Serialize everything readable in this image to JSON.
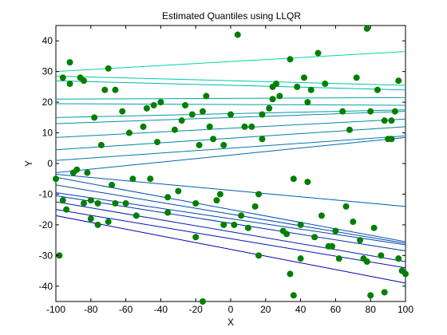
{
  "chart_data": {
    "type": "scatter",
    "title": "Estimated Quantiles using LLQR",
    "xlabel": "X",
    "ylabel": "Y",
    "xlim": [
      -100,
      100
    ],
    "ylim": [
      -45,
      45
    ],
    "xticks": [
      -100,
      -80,
      -60,
      -40,
      -20,
      0,
      20,
      40,
      60,
      80,
      100
    ],
    "yticks": [
      -40,
      -30,
      -20,
      -10,
      0,
      10,
      20,
      30,
      40
    ],
    "grid": false,
    "points": {
      "color": "#007f00",
      "x": [
        -100,
        -96,
        -94,
        -92,
        -90,
        -86,
        -84,
        -82,
        -80,
        -78,
        -76,
        -72,
        -70,
        -68,
        -66,
        -62,
        -58,
        -54,
        -50,
        -46,
        -44,
        -40,
        -36,
        -32,
        -30,
        -26,
        -22,
        -20,
        -18,
        -16,
        -14,
        -12,
        -10,
        -6,
        -4,
        0,
        4,
        6,
        10,
        12,
        16,
        18,
        22,
        24,
        26,
        28,
        30,
        34,
        36,
        38,
        40,
        42,
        44,
        46,
        50,
        52,
        56,
        60,
        64,
        68,
        72,
        76,
        78,
        80,
        82,
        86,
        88,
        90,
        92,
        94,
        96,
        98,
        100,
        -98,
        -96,
        -92,
        -88,
        -84,
        -80,
        -76,
        -74,
        -70,
        -66,
        -60,
        -56,
        -48,
        -42,
        -36,
        -28,
        -20,
        -16,
        -8,
        -4,
        2,
        8,
        14,
        16,
        18,
        24,
        32,
        34,
        36,
        40,
        44,
        48,
        54,
        58,
        62,
        66,
        70,
        74,
        78,
        80,
        84,
        88,
        92,
        96
      ],
      "y": [
        -5,
        -12,
        -15,
        33,
        -3,
        28,
        27,
        -3,
        -18,
        15,
        -13,
        24,
        31,
        -7,
        -13,
        17,
        10,
        -17,
        12,
        -5,
        19,
        20,
        -11,
        11,
        -9,
        19,
        16,
        -13,
        6,
        17,
        22,
        12,
        8,
        -10,
        -20,
        16,
        42,
        -17,
        -21,
        12,
        -30,
        16,
        18,
        25,
        26,
        22,
        -22,
        34,
        -5,
        25,
        -20,
        28,
        20,
        24,
        36,
        -17,
        -27,
        -22,
        17,
        11,
        28,
        -31,
        44,
        17,
        -21,
        -30,
        14,
        8,
        8,
        17,
        27,
        -35,
        -36,
        -30,
        28,
        26,
        -2,
        -13,
        -12,
        -20,
        6,
        -19,
        24,
        -13,
        -5,
        18,
        7,
        -16,
        14,
        -24,
        -45,
        -12,
        6,
        -20,
        12,
        -14,
        -10,
        8,
        21,
        -23,
        -36,
        -43,
        -31,
        -6,
        -24,
        26,
        -27,
        -31,
        -14,
        -19,
        -25,
        -32,
        -43,
        24,
        -42,
        14,
        -31
      ]
    },
    "quantile_lines": [
      {
        "color": "#00d8a0",
        "y_at_xmin": 30,
        "y_at_xmax": 36.5
      },
      {
        "color": "#00c8a8",
        "y_at_xmin": 28.5,
        "y_at_xmax": 25.5
      },
      {
        "color": "#00b8a8",
        "y_at_xmin": 27,
        "y_at_xmax": 24
      },
      {
        "color": "#00a8a8",
        "y_at_xmin": 21,
        "y_at_xmax": 21.5
      },
      {
        "color": "#00a0a8",
        "y_at_xmin": 19.5,
        "y_at_xmax": 19
      },
      {
        "color": "#0098a8",
        "y_at_xmin": 15,
        "y_at_xmax": 17.5
      },
      {
        "color": "#0090a8",
        "y_at_xmin": 13,
        "y_at_xmax": 17
      },
      {
        "color": "#0088a8",
        "y_at_xmin": 8.5,
        "y_at_xmax": 14.5
      },
      {
        "color": "#0080a8",
        "y_at_xmin": 4.5,
        "y_at_xmax": 12
      },
      {
        "color": "#0078a8",
        "y_at_xmin": 1,
        "y_at_xmax": 9
      },
      {
        "color": "#0068b0",
        "y_at_xmin": -3,
        "y_at_xmax": 8.5
      },
      {
        "color": "#005ab0",
        "y_at_xmin": -3.5,
        "y_at_xmax": -14
      },
      {
        "color": "#0050b0",
        "y_at_xmin": -4.5,
        "y_at_xmax": -25.5
      },
      {
        "color": "#0048b0",
        "y_at_xmin": -7,
        "y_at_xmax": -26
      },
      {
        "color": "#0040b0",
        "y_at_xmin": -9.5,
        "y_at_xmax": -26.5
      },
      {
        "color": "#0030b0",
        "y_at_xmin": -10.5,
        "y_at_xmax": -28.5
      },
      {
        "color": "#0020b0",
        "y_at_xmin": -12.5,
        "y_at_xmax": -32
      },
      {
        "color": "#0010b0",
        "y_at_xmin": -15,
        "y_at_xmax": -34
      },
      {
        "color": "#0000b0",
        "y_at_xmin": -17,
        "y_at_xmax": -39
      }
    ]
  }
}
